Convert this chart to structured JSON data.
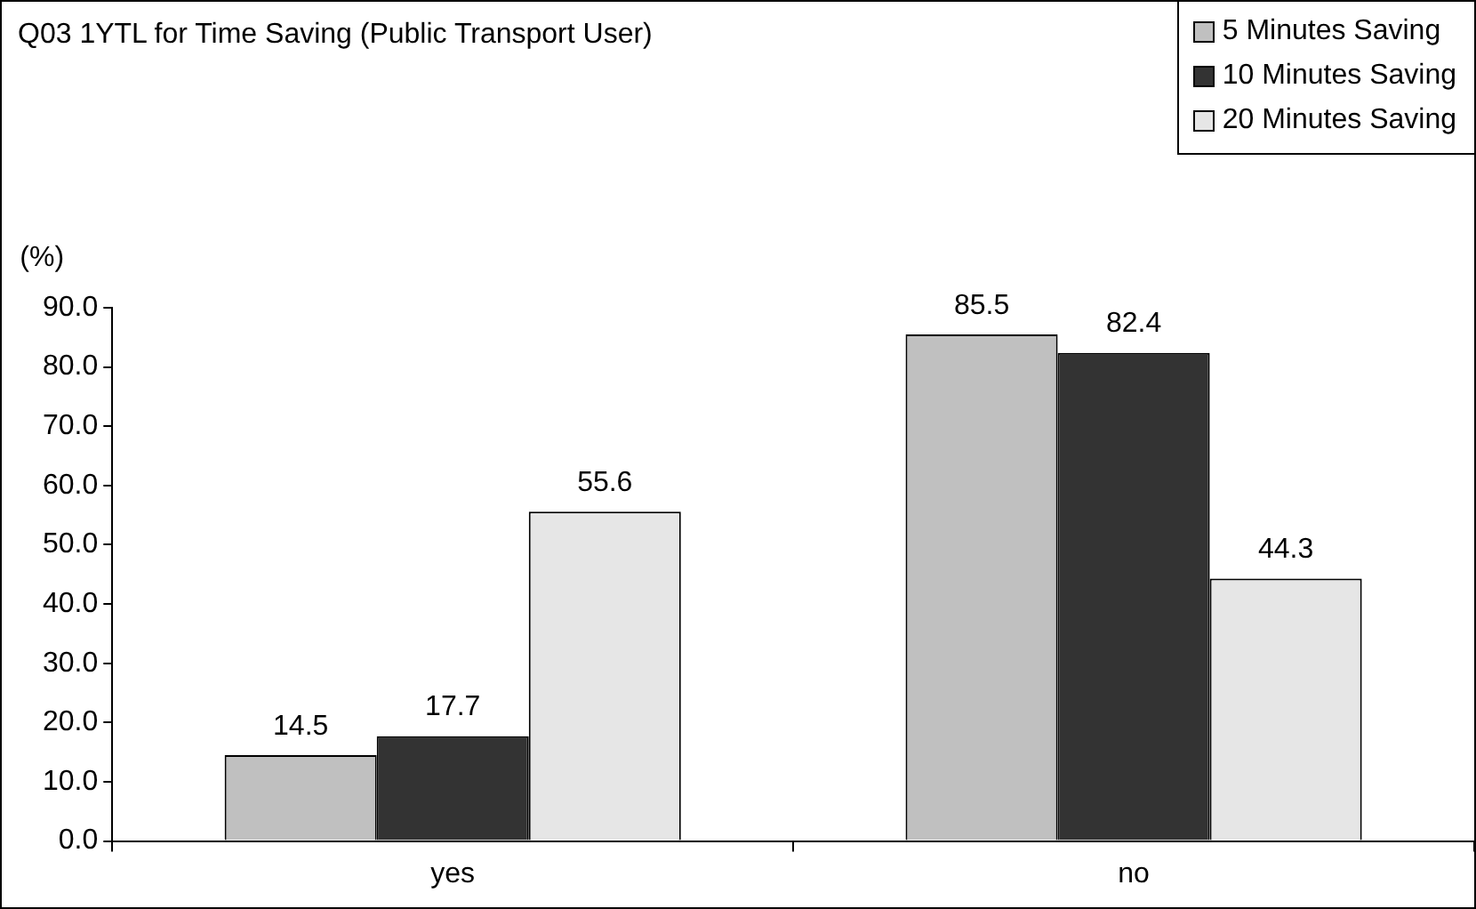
{
  "chart_data": {
    "type": "bar",
    "title": "Q03 1YTL for Time Saving (Public Transport User)",
    "ylabel": "(%)",
    "categories": [
      "yes",
      "no"
    ],
    "series": [
      {
        "name": "5 Minutes Saving",
        "color": "#c0c0c0",
        "values": [
          14.5,
          85.5
        ]
      },
      {
        "name": "10 Minutes Saving",
        "color": "#333333",
        "values": [
          17.7,
          82.4
        ]
      },
      {
        "name": "20 Minutes Saving",
        "color": "#e6e6e6",
        "values": [
          55.6,
          44.3
        ]
      }
    ],
    "ylim": [
      0,
      90
    ],
    "yticks": [
      {
        "value": 0,
        "label": "0.0"
      },
      {
        "value": 10,
        "label": "10.0"
      },
      {
        "value": 20,
        "label": "20.0"
      },
      {
        "value": 30,
        "label": "30.0"
      },
      {
        "value": 40,
        "label": "40.0"
      },
      {
        "value": 50,
        "label": "50.0"
      },
      {
        "value": 60,
        "label": "60.0"
      },
      {
        "value": 70,
        "label": "70.0"
      },
      {
        "value": 80,
        "label": "80.0"
      },
      {
        "value": 90,
        "label": "90.0"
      }
    ],
    "grid": false,
    "legend": "top right",
    "data_labels": true
  }
}
